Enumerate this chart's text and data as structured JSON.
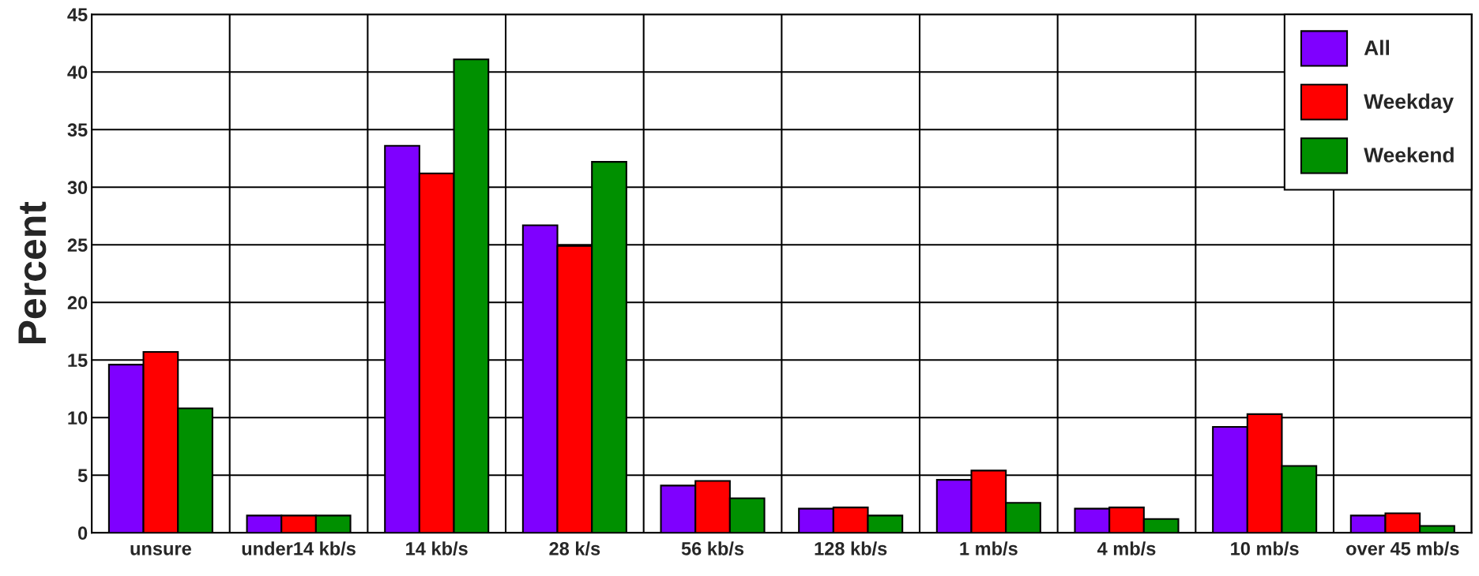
{
  "chart_data": {
    "type": "bar",
    "ylabel": "Percent",
    "categories": [
      "unsure",
      "under14 kb/s",
      "14 kb/s",
      "28 k/s",
      "56 kb/s",
      "128 kb/s",
      "1 mb/s",
      "4 mb/s",
      "10 mb/s",
      "over 45 mb/s"
    ],
    "series": [
      {
        "name": "All",
        "color": "#7f00ff",
        "values": [
          14.6,
          1.5,
          33.6,
          26.7,
          4.1,
          2.1,
          4.6,
          2.1,
          9.2,
          1.5
        ]
      },
      {
        "name": "Weekday",
        "color": "#ff0000",
        "values": [
          15.7,
          1.5,
          31.2,
          24.9,
          4.5,
          2.2,
          5.4,
          2.2,
          10.3,
          1.7
        ]
      },
      {
        "name": "Weekend",
        "color": "#009000",
        "values": [
          10.8,
          1.5,
          41.1,
          32.2,
          3.0,
          1.5,
          2.6,
          1.2,
          5.8,
          0.6
        ]
      }
    ],
    "ylim": [
      0,
      45
    ],
    "yticks": [
      0,
      5,
      10,
      15,
      20,
      25,
      30,
      35,
      40,
      45
    ],
    "grid": true,
    "legend": "top right"
  }
}
